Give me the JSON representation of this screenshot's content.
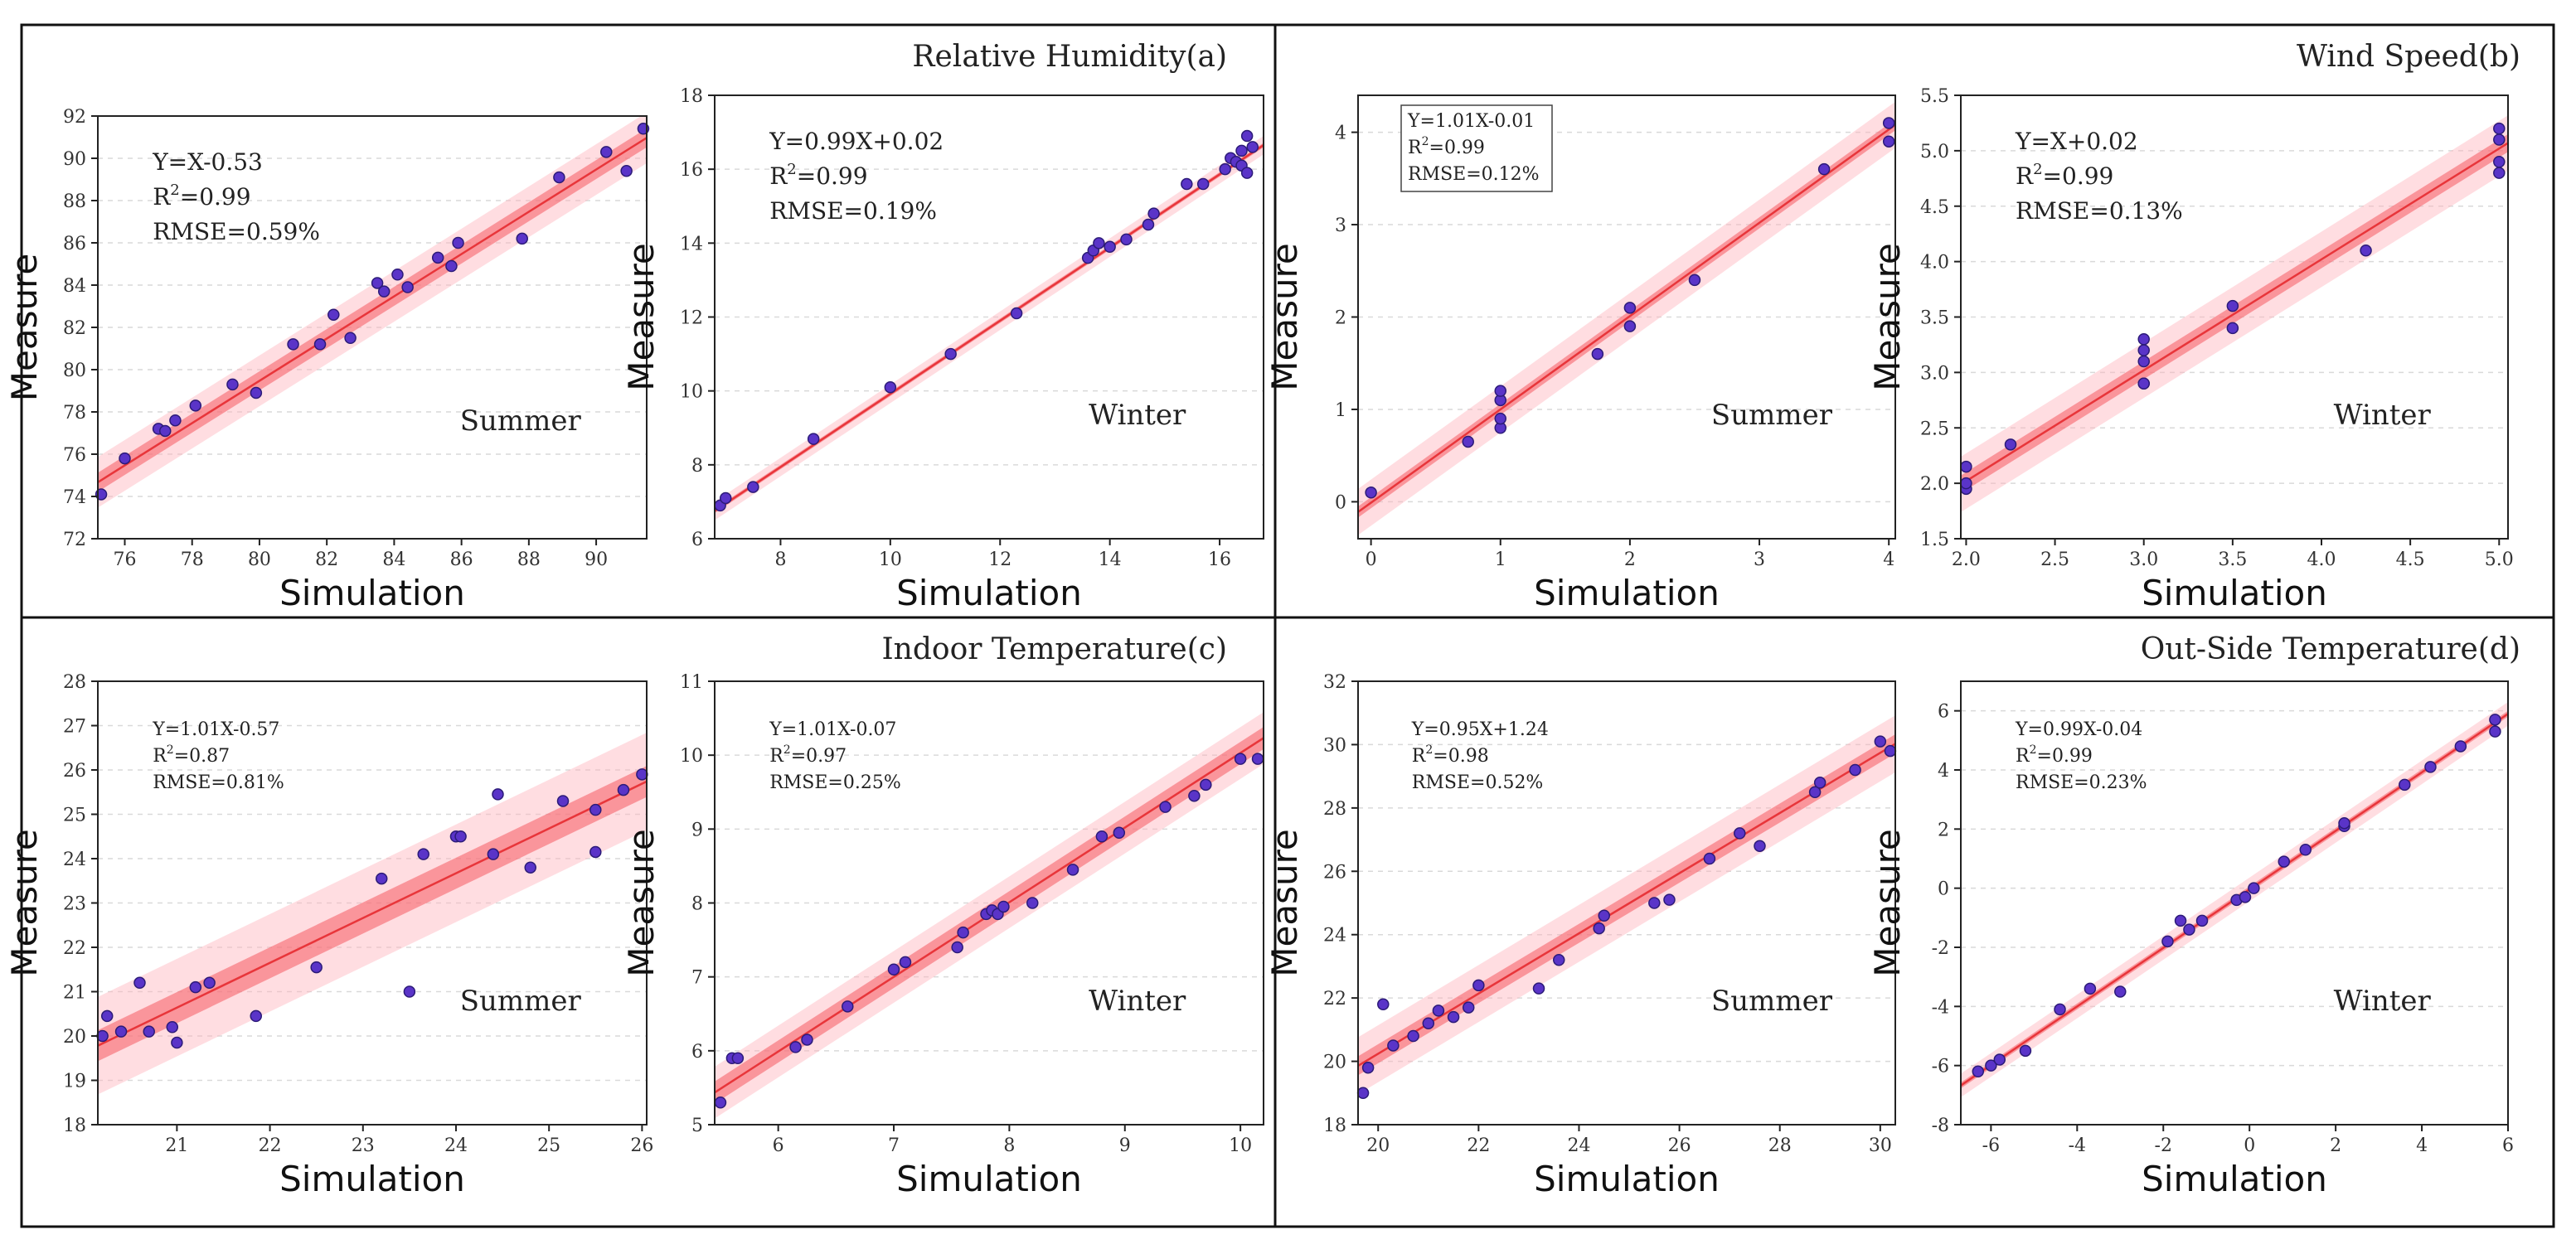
{
  "figure": {
    "panel_titles": [
      "Relative Humidity(a)",
      "Wind Speed(b)",
      "Indoor Temperature(c)",
      "Out-Side Temperature(d)"
    ],
    "xlabel": "Simulation",
    "ylabel": "Measure"
  },
  "chart_data": [
    {
      "type": "scatter",
      "group": "Relative Humidity(a)",
      "season": "Summer",
      "xlabel": "Simulation",
      "ylabel": "Measure",
      "xlim": [
        75.2,
        91.5
      ],
      "ylim": [
        72,
        92
      ],
      "xticks": [
        76,
        78,
        80,
        82,
        84,
        86,
        88,
        90
      ],
      "yticks": [
        72,
        74,
        76,
        78,
        80,
        82,
        84,
        86,
        88,
        90,
        92
      ],
      "fit": {
        "slope": 1.0,
        "intercept": -0.53,
        "conf": 0.45,
        "pred": 1.2
      },
      "equation": "Y=X-0.53",
      "r2": "0.99",
      "rmse": "RMSE=0.59%",
      "x": [
        75.3,
        76.0,
        77.0,
        77.2,
        77.5,
        78.1,
        79.2,
        79.9,
        81.0,
        81.8,
        82.2,
        82.7,
        83.5,
        83.7,
        84.1,
        84.4,
        85.3,
        85.7,
        85.9,
        87.8,
        88.9,
        90.3,
        90.9,
        91.4
      ],
      "y": [
        74.1,
        75.8,
        77.2,
        77.1,
        77.6,
        78.3,
        79.3,
        78.9,
        81.2,
        81.2,
        82.6,
        81.5,
        84.1,
        83.7,
        84.5,
        83.9,
        85.3,
        84.9,
        86.0,
        86.2,
        89.1,
        90.3,
        89.4,
        91.4
      ]
    },
    {
      "type": "scatter",
      "group": "Relative Humidity(a)",
      "season": "Winter",
      "xlabel": "Simulation",
      "ylabel": "Measure",
      "xlim": [
        6.8,
        16.8
      ],
      "ylim": [
        6,
        18
      ],
      "xticks": [
        8,
        10,
        12,
        14,
        16
      ],
      "yticks": [
        6,
        8,
        10,
        12,
        14,
        16,
        18
      ],
      "fit": {
        "slope": 0.99,
        "intercept": 0.02,
        "conf": 0.06,
        "pred": 0.25
      },
      "equation": "Y=0.99X+0.02",
      "r2": "0.99",
      "rmse": "RMSE=0.19%",
      "x": [
        6.9,
        7.0,
        7.5,
        8.6,
        10.0,
        11.1,
        12.3,
        13.6,
        13.7,
        13.8,
        14.0,
        14.3,
        14.7,
        14.8,
        15.4,
        15.7,
        16.1,
        16.2,
        16.3,
        16.4,
        16.4,
        16.5,
        16.5,
        16.6
      ],
      "y": [
        6.9,
        7.1,
        7.4,
        8.7,
        10.1,
        11.0,
        12.1,
        13.6,
        13.8,
        14.0,
        13.9,
        14.1,
        14.5,
        14.8,
        15.6,
        15.6,
        16.0,
        16.3,
        16.2,
        16.1,
        16.5,
        15.9,
        16.9,
        16.6
      ]
    },
    {
      "type": "scatter",
      "group": "Wind Speed(b)",
      "season": "Summer",
      "xlabel": "Simulation",
      "ylabel": "Measure",
      "xlim": [
        -0.1,
        4.05
      ],
      "ylim": [
        -0.4,
        4.4
      ],
      "xticks": [
        0,
        1,
        2,
        3,
        4
      ],
      "yticks": [
        0,
        1,
        2,
        3,
        4
      ],
      "fit": {
        "slope": 1.01,
        "intercept": -0.01,
        "conf": 0.06,
        "pred": 0.25
      },
      "equation": "Y=1.01X-0.01",
      "r2": "0.99",
      "rmse": "RMSE=0.12%",
      "x": [
        0.0,
        0.75,
        1.0,
        1.0,
        1.0,
        1.0,
        1.75,
        2.0,
        2.0,
        2.5,
        3.5,
        4.0,
        4.0
      ],
      "y": [
        0.1,
        0.65,
        0.8,
        0.9,
        1.1,
        1.2,
        1.6,
        1.9,
        2.1,
        2.4,
        3.6,
        3.9,
        4.1
      ]
    },
    {
      "type": "scatter",
      "group": "Wind Speed(b)",
      "season": "Winter",
      "xlabel": "Simulation",
      "ylabel": "Measure",
      "xlim": [
        1.97,
        5.05
      ],
      "ylim": [
        1.5,
        5.5
      ],
      "xticks": [
        2.0,
        2.5,
        3.0,
        3.5,
        4.0,
        4.5,
        5.0
      ],
      "yticks": [
        1.5,
        2.0,
        2.5,
        3.0,
        3.5,
        4.0,
        4.5,
        5.0,
        5.5
      ],
      "fit": {
        "slope": 1.0,
        "intercept": 0.02,
        "conf": 0.08,
        "pred": 0.25
      },
      "equation": "Y=X+0.02",
      "r2": "0.99",
      "rmse": "RMSE=0.13%",
      "x": [
        2.0,
        2.0,
        2.0,
        2.25,
        3.0,
        3.0,
        3.0,
        3.0,
        3.0,
        3.5,
        3.5,
        4.25,
        5.0,
        5.0,
        5.0,
        5.0
      ],
      "y": [
        1.95,
        2.0,
        2.15,
        2.35,
        2.9,
        3.1,
        3.2,
        3.3,
        2.9,
        3.4,
        3.6,
        4.1,
        4.8,
        4.9,
        5.1,
        5.2
      ]
    },
    {
      "type": "scatter",
      "group": "Indoor Temperature(c)",
      "season": "Summer",
      "xlabel": "Simulation",
      "ylabel": "Measure",
      "xlim": [
        20.15,
        26.05
      ],
      "ylim": [
        18,
        28
      ],
      "xticks": [
        21,
        22,
        23,
        24,
        25,
        26
      ],
      "yticks": [
        18,
        19,
        20,
        21,
        22,
        23,
        24,
        25,
        26,
        27,
        28
      ],
      "fit": {
        "slope": 1.01,
        "intercept": -0.57,
        "conf": 0.35,
        "pred": 1.1
      },
      "equation": "Y=1.01X-0.57",
      "r2": "0.87",
      "rmse": "RMSE=0.81%",
      "x": [
        20.2,
        20.25,
        20.4,
        20.6,
        20.7,
        20.95,
        21.0,
        21.2,
        21.35,
        21.85,
        22.5,
        23.2,
        23.5,
        23.65,
        24.0,
        24.05,
        24.4,
        24.45,
        24.8,
        25.15,
        25.5,
        25.5,
        25.8,
        26.0
      ],
      "y": [
        20.0,
        20.45,
        20.1,
        21.2,
        20.1,
        20.2,
        19.85,
        21.1,
        21.2,
        20.45,
        21.55,
        23.55,
        21.0,
        24.1,
        24.5,
        24.5,
        24.1,
        25.45,
        23.8,
        25.3,
        24.15,
        25.1,
        25.55,
        25.9
      ]
    },
    {
      "type": "scatter",
      "group": "Indoor Temperature(c)",
      "season": "Winter",
      "xlabel": "Simulation",
      "ylabel": "Measure",
      "xlim": [
        5.45,
        10.2
      ],
      "ylim": [
        5,
        11
      ],
      "xticks": [
        6,
        7,
        8,
        9,
        10
      ],
      "yticks": [
        5,
        6,
        7,
        8,
        9,
        10,
        11
      ],
      "fit": {
        "slope": 1.01,
        "intercept": -0.07,
        "conf": 0.15,
        "pred": 0.35
      },
      "equation": "Y=1.01X-0.07",
      "r2": "0.97",
      "rmse": "RMSE=0.25%",
      "x": [
        5.5,
        5.6,
        5.65,
        6.15,
        6.25,
        6.6,
        7.0,
        7.1,
        7.55,
        7.6,
        7.8,
        7.85,
        7.9,
        7.95,
        8.2,
        8.55,
        8.8,
        8.95,
        9.35,
        9.6,
        9.7,
        10.0,
        10.15
      ],
      "y": [
        5.3,
        5.9,
        5.9,
        6.05,
        6.15,
        6.6,
        7.1,
        7.2,
        7.4,
        7.6,
        7.85,
        7.9,
        7.85,
        7.95,
        8.0,
        8.45,
        8.9,
        8.95,
        9.3,
        9.45,
        9.6,
        9.95,
        9.95
      ]
    },
    {
      "type": "scatter",
      "group": "Out-Side Temperature(d)",
      "season": "Summer",
      "xlabel": "Simulation",
      "ylabel": "Measure",
      "xlim": [
        19.6,
        30.3
      ],
      "ylim": [
        18,
        32
      ],
      "xticks": [
        20,
        22,
        24,
        26,
        28,
        30
      ],
      "yticks": [
        18,
        20,
        22,
        24,
        26,
        28,
        30,
        32
      ],
      "fit": {
        "slope": 0.95,
        "intercept": 1.24,
        "conf": 0.3,
        "pred": 0.9
      },
      "equation": "Y=0.95X+1.24",
      "r2": "0.98",
      "rmse": "RMSE=0.52%",
      "x": [
        19.7,
        19.8,
        20.1,
        20.3,
        20.7,
        21.0,
        21.2,
        21.5,
        21.8,
        22.0,
        23.2,
        23.6,
        24.4,
        24.5,
        25.5,
        25.8,
        26.6,
        27.2,
        27.6,
        28.7,
        28.8,
        29.5,
        30.0,
        30.2
      ],
      "y": [
        19.0,
        19.8,
        21.8,
        20.5,
        20.8,
        21.2,
        21.6,
        21.4,
        21.7,
        22.4,
        22.3,
        23.2,
        24.2,
        24.6,
        25.0,
        25.1,
        26.4,
        27.2,
        26.8,
        28.5,
        28.8,
        29.2,
        30.1,
        29.8
      ]
    },
    {
      "type": "scatter",
      "group": "Out-Side Temperature(d)",
      "season": "Winter",
      "xlabel": "Simulation",
      "ylabel": "Measure",
      "xlim": [
        -6.7,
        6.0
      ],
      "ylim": [
        -8,
        7
      ],
      "xticks": [
        -6,
        -4,
        -2,
        0,
        2,
        4,
        6
      ],
      "yticks": [
        -8,
        -6,
        -4,
        -2,
        0,
        2,
        4,
        6
      ],
      "fit": {
        "slope": 0.99,
        "intercept": -0.04,
        "conf": 0.1,
        "pred": 0.4
      },
      "equation": "Y=0.99X-0.04",
      "r2": "0.99",
      "rmse": "RMSE=0.23%",
      "x": [
        -6.3,
        -6.0,
        -5.8,
        -5.2,
        -4.4,
        -3.7,
        -3.0,
        -1.9,
        -1.6,
        -1.4,
        -1.1,
        -0.3,
        -0.1,
        0.1,
        0.8,
        1.3,
        2.2,
        2.2,
        3.6,
        4.2,
        4.9,
        5.7,
        5.7
      ],
      "y": [
        -6.2,
        -6.0,
        -5.8,
        -5.5,
        -4.1,
        -3.4,
        -3.5,
        -1.8,
        -1.1,
        -1.4,
        -1.1,
        -0.4,
        -0.3,
        0.0,
        0.9,
        1.3,
        2.1,
        2.2,
        3.5,
        4.1,
        4.8,
        5.3,
        5.7
      ]
    }
  ]
}
